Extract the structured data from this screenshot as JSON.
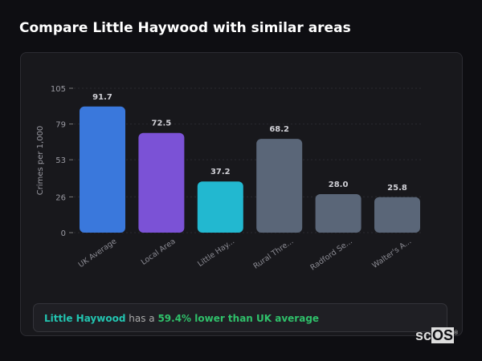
{
  "title": "Compare Little Haywood with similar areas",
  "chart_data": {
    "type": "bar",
    "title": "",
    "xlabel": "",
    "ylabel": "Crimes per 1,000",
    "ylim": [
      0,
      105
    ],
    "yticks": [
      0,
      26,
      53,
      79,
      105
    ],
    "grid": true,
    "categories": [
      "UK Average",
      "Local Area",
      "Little Hay...",
      "Rural Thre...",
      "Radford Se...",
      "Walter's A..."
    ],
    "values": [
      91.7,
      72.5,
      37.2,
      68.2,
      28.0,
      25.8
    ],
    "value_labels": [
      "91.7",
      "72.5",
      "37.2",
      "68.2",
      "28.0",
      "25.8"
    ],
    "colors": [
      "#3a78dc",
      "#7b52d6",
      "#22b8d0",
      "#5a6678",
      "#5a6678",
      "#5a6678"
    ]
  },
  "summary": {
    "area": "Little Haywood",
    "middle": " has a ",
    "comparison": "59.4% lower than UK average"
  },
  "watermark": {
    "sc": "sc",
    "os": "OS",
    "mark": "®"
  }
}
